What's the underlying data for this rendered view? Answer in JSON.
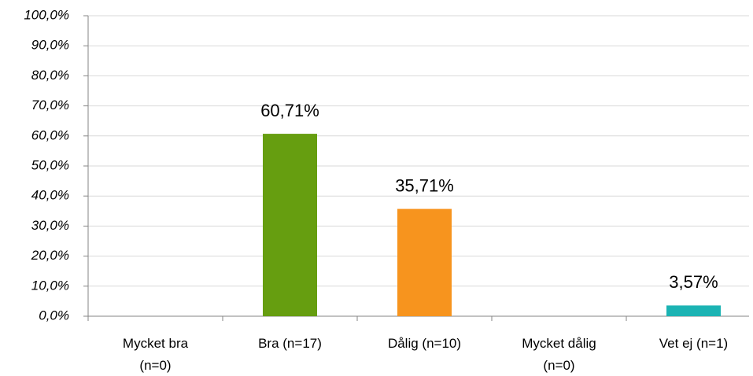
{
  "chart_data": {
    "type": "bar",
    "categories": [
      "Mycket bra\n(n=0)",
      "Bra (n=17)",
      "Dålig (n=10)",
      "Mycket dålig\n(n=0)",
      "Vet ej (n=1)"
    ],
    "values": [
      0,
      60.71,
      35.71,
      0,
      3.57
    ],
    "value_labels": [
      null,
      "60,71%",
      "35,71%",
      null,
      "3,57%"
    ],
    "colors": [
      null,
      "#669e10",
      "#f7941e",
      null,
      "#1bb3b3"
    ],
    "ylim": [
      0,
      100
    ],
    "yticks": [
      {
        "value": 0,
        "label": "0,0%"
      },
      {
        "value": 10,
        "label": "10,0%"
      },
      {
        "value": 20,
        "label": "20,0%"
      },
      {
        "value": 30,
        "label": "30,0%"
      },
      {
        "value": 40,
        "label": "40,0%"
      },
      {
        "value": 50,
        "label": "50,0%"
      },
      {
        "value": 60,
        "label": "60,0%"
      },
      {
        "value": 70,
        "label": "70,0%"
      },
      {
        "value": 80,
        "label": "80,0%"
      },
      {
        "value": 90,
        "label": "90,0%"
      },
      {
        "value": 100,
        "label": "100,0%"
      }
    ],
    "grid": true
  }
}
